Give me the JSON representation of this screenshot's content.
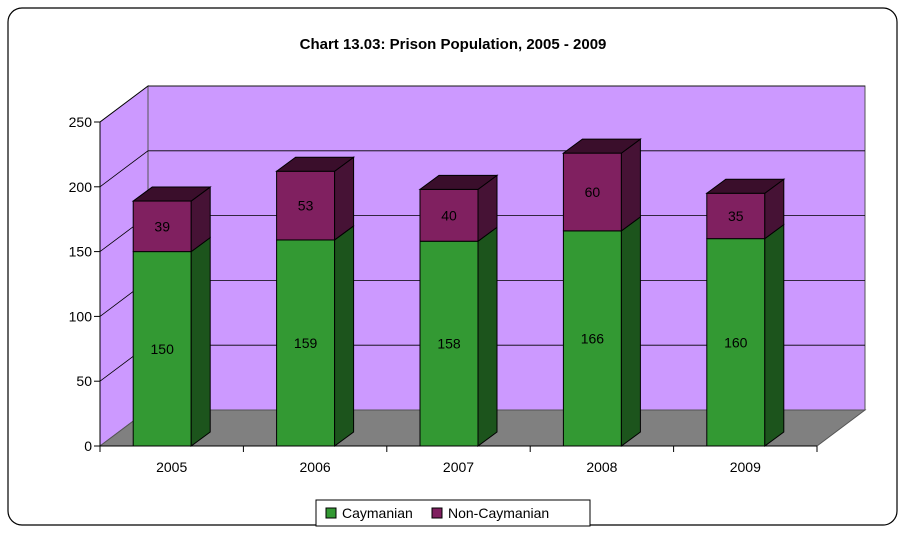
{
  "chart_data": {
    "type": "bar",
    "stacked": true,
    "three_d": true,
    "title": "Chart 13.03: Prison Population, 2005 - 2009",
    "categories": [
      "2005",
      "2006",
      "2007",
      "2008",
      "2009"
    ],
    "series": [
      {
        "name": "Caymanian",
        "values": [
          150,
          159,
          158,
          166,
          160
        ],
        "color": "#339933"
      },
      {
        "name": "Non-Caymanian",
        "values": [
          39,
          53,
          40,
          60,
          35
        ],
        "color": "#802060"
      }
    ],
    "ylim": [
      0,
      250
    ],
    "yticks": [
      0,
      50,
      100,
      150,
      200,
      250
    ],
    "grid": true,
    "legend": "bottom",
    "wall_color": "#cc99ff",
    "floor_color": "#808080"
  }
}
